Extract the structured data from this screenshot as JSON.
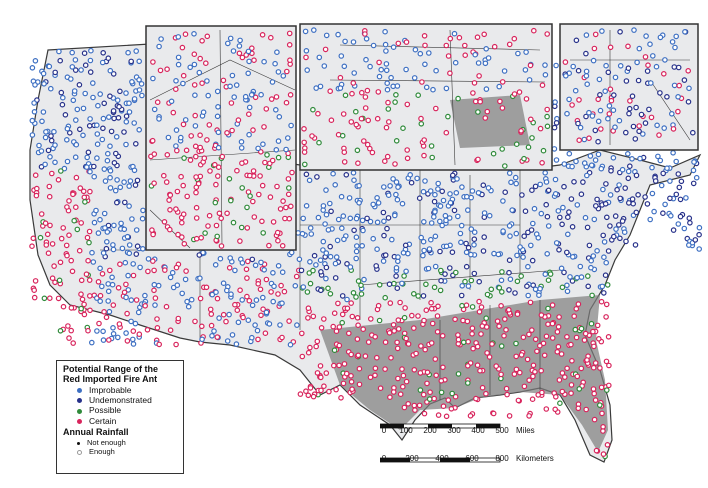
{
  "legend": {
    "title_line1": "Potential Range of the",
    "title_line2": "Red Imported Fire Ant",
    "categories": [
      {
        "label": "Improbable",
        "color": "#3d6fc2"
      },
      {
        "label": "Undemonstrated",
        "color": "#27318a"
      },
      {
        "label": "Possible",
        "color": "#2f8a3a"
      },
      {
        "label": "Certain",
        "color": "#d8245c"
      }
    ],
    "rainfall_title": "Annual Rainfall",
    "rainfall": [
      {
        "label": "Not enough",
        "color": "#111111"
      },
      {
        "label": "Enough",
        "color": "#ffffff"
      }
    ]
  },
  "scale_miles": {
    "ticks": [
      "0",
      "100",
      "200",
      "300",
      "400",
      "500"
    ],
    "unit": "Miles"
  },
  "scale_km": {
    "ticks": [
      "0",
      "200",
      "400",
      "600",
      "800"
    ],
    "unit": "Kilometers"
  },
  "colors": {
    "land": "#e9eaec",
    "border": "#3a3a3a",
    "ocean": "#ffffff",
    "gray_zone": "#7d7d7d"
  }
}
